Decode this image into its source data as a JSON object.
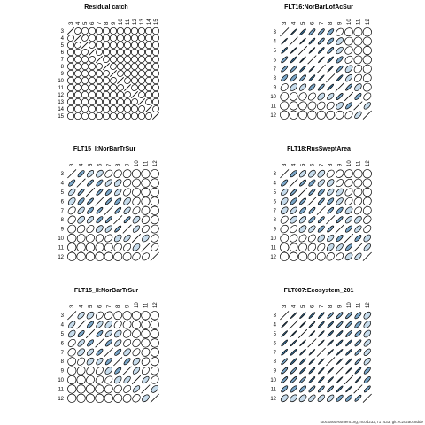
{
  "footer": "stockassessment.org, ncod232, r17433, git:ec2c2a0c8dde",
  "legend_colors": {
    "strong": "#3a6f96",
    "medium": "#7aa6c8",
    "light": "#c7dcec",
    "none": "#ffffff"
  },
  "chart_data": [
    {
      "type": "correlation-matrix",
      "title": "Residual catch",
      "ages": [
        3,
        4,
        5,
        6,
        7,
        8,
        9,
        10,
        11,
        12,
        13,
        14,
        15
      ],
      "rows": [
        [
          1,
          0.1,
          0,
          0,
          0,
          0,
          0,
          0,
          0,
          0,
          0,
          0,
          0
        ],
        [
          0.1,
          1,
          0.15,
          0,
          0,
          0,
          0,
          0,
          0,
          0,
          0,
          0,
          0
        ],
        [
          0,
          0.15,
          1,
          0.1,
          0,
          0,
          0,
          0,
          0,
          0,
          0,
          0,
          0
        ],
        [
          0,
          0,
          0.1,
          1,
          0.1,
          0,
          0,
          0,
          0,
          0,
          0,
          0,
          0
        ],
        [
          0,
          0,
          0,
          0.1,
          1,
          0.1,
          0,
          0,
          0,
          0,
          0,
          0,
          0
        ],
        [
          0,
          0,
          0,
          0,
          0.1,
          1,
          0.1,
          0,
          0,
          0,
          0,
          0,
          0
        ],
        [
          0,
          0,
          0,
          0,
          0,
          0.1,
          1,
          0.1,
          0,
          0,
          0,
          0,
          0
        ],
        [
          0,
          0,
          0,
          0,
          0,
          0,
          0.1,
          1,
          0.1,
          0,
          0,
          0,
          0
        ],
        [
          0,
          0,
          0,
          0,
          0,
          0,
          0,
          0.1,
          1,
          0.1,
          0,
          0,
          0
        ],
        [
          0,
          0,
          0,
          0,
          0,
          0,
          0,
          0,
          0.1,
          1,
          0.1,
          0,
          0
        ],
        [
          0,
          0,
          0,
          0,
          0,
          0,
          0,
          0,
          0,
          0.1,
          1,
          0.1,
          0
        ],
        [
          0,
          0,
          0,
          0,
          0,
          0,
          0,
          0,
          0,
          0,
          0.1,
          1,
          0.1
        ],
        [
          0,
          0,
          0,
          0,
          0,
          0,
          0,
          0,
          0,
          0,
          0,
          0.1,
          1
        ]
      ]
    },
    {
      "type": "correlation-matrix",
      "title": "FLT16:NorBarLofAcSur",
      "ages": [
        3,
        4,
        5,
        6,
        7,
        8,
        9,
        10,
        11,
        12
      ],
      "rows": [
        [
          1,
          0.9,
          0.8,
          0.7,
          0.7,
          0.6,
          0.3,
          0.1,
          0.05,
          0
        ],
        [
          0.9,
          1,
          0.9,
          0.8,
          0.7,
          0.6,
          0.4,
          0.1,
          0.05,
          0
        ],
        [
          0.8,
          0.9,
          1,
          0.9,
          0.8,
          0.7,
          0.5,
          0.2,
          0.1,
          0
        ],
        [
          0.7,
          0.8,
          0.9,
          1,
          0.9,
          0.8,
          0.6,
          0.3,
          0.1,
          0
        ],
        [
          0.7,
          0.7,
          0.8,
          0.9,
          1,
          0.9,
          0.7,
          0.4,
          0.2,
          0.05
        ],
        [
          0.6,
          0.6,
          0.7,
          0.8,
          0.9,
          1,
          0.8,
          0.5,
          0.3,
          0.1
        ],
        [
          0.3,
          0.4,
          0.5,
          0.6,
          0.7,
          0.8,
          1,
          0.7,
          0.4,
          0.1
        ],
        [
          0.1,
          0.1,
          0.2,
          0.3,
          0.4,
          0.5,
          0.7,
          1,
          0.6,
          0.3
        ],
        [
          0.05,
          0.05,
          0.1,
          0.1,
          0.2,
          0.3,
          0.4,
          0.6,
          1,
          0.5
        ],
        [
          0,
          0,
          0,
          0,
          0.05,
          0.1,
          0.1,
          0.3,
          0.5,
          1
        ]
      ]
    },
    {
      "type": "correlation-matrix",
      "title": "FLT15_I:NorBarTrSur_",
      "ages": [
        3,
        4,
        5,
        6,
        7,
        8,
        9,
        10,
        11,
        12
      ],
      "rows": [
        [
          1,
          0.6,
          0.5,
          0.4,
          0.3,
          0.2,
          0.1,
          0,
          0,
          0
        ],
        [
          0.6,
          1,
          0.7,
          0.6,
          0.5,
          0.4,
          0.2,
          0.1,
          0,
          0
        ],
        [
          0.5,
          0.7,
          1,
          0.7,
          0.6,
          0.5,
          0.3,
          0.1,
          0,
          0
        ],
        [
          0.4,
          0.6,
          0.7,
          1,
          0.7,
          0.6,
          0.4,
          0.2,
          0.05,
          0
        ],
        [
          0.3,
          0.5,
          0.6,
          0.7,
          1,
          0.7,
          0.5,
          0.3,
          0.1,
          0
        ],
        [
          0.2,
          0.4,
          0.5,
          0.6,
          0.7,
          1,
          0.7,
          0.4,
          0.2,
          0.05
        ],
        [
          0.1,
          0.2,
          0.3,
          0.4,
          0.5,
          0.7,
          1,
          0.5,
          0.3,
          0.1
        ],
        [
          0,
          0.1,
          0.1,
          0.2,
          0.3,
          0.4,
          0.5,
          1,
          0.4,
          0.2
        ],
        [
          0,
          0,
          0,
          0.05,
          0.1,
          0.2,
          0.3,
          0.4,
          1,
          0.3
        ],
        [
          0,
          0,
          0,
          0,
          0,
          0.05,
          0.1,
          0.2,
          0.3,
          1
        ]
      ]
    },
    {
      "type": "correlation-matrix",
      "title": "FLT18:RusSweptArea",
      "ages": [
        3,
        4,
        5,
        6,
        7,
        8,
        9,
        10,
        11,
        12
      ],
      "rows": [
        [
          1,
          0.6,
          0.5,
          0.4,
          0.4,
          0.3,
          0.2,
          0.1,
          0,
          0
        ],
        [
          0.6,
          1,
          0.7,
          0.6,
          0.5,
          0.4,
          0.3,
          0.2,
          0.1,
          0
        ],
        [
          0.5,
          0.7,
          1,
          0.7,
          0.6,
          0.5,
          0.4,
          0.3,
          0.1,
          0
        ],
        [
          0.4,
          0.6,
          0.7,
          1,
          0.7,
          0.6,
          0.5,
          0.3,
          0.2,
          0.1
        ],
        [
          0.4,
          0.5,
          0.6,
          0.7,
          1,
          0.7,
          0.6,
          0.4,
          0.3,
          0.1
        ],
        [
          0.3,
          0.4,
          0.5,
          0.6,
          0.7,
          1,
          0.7,
          0.5,
          0.4,
          0.2
        ],
        [
          0.2,
          0.3,
          0.4,
          0.5,
          0.6,
          0.7,
          1,
          0.6,
          0.5,
          0.3
        ],
        [
          0.1,
          0.2,
          0.3,
          0.3,
          0.4,
          0.5,
          0.6,
          1,
          0.6,
          0.4
        ],
        [
          0,
          0.1,
          0.1,
          0.2,
          0.3,
          0.4,
          0.5,
          0.6,
          1,
          0.5
        ],
        [
          0,
          0,
          0,
          0.1,
          0.1,
          0.2,
          0.3,
          0.4,
          0.5,
          1
        ]
      ]
    },
    {
      "type": "correlation-matrix",
      "title": "FLT15_II:NorBarTrSur",
      "ages": [
        3,
        4,
        5,
        6,
        7,
        8,
        9,
        10,
        11,
        12
      ],
      "rows": [
        [
          1,
          0.5,
          0.4,
          0.3,
          0.2,
          0.1,
          0,
          0,
          0,
          0
        ],
        [
          0.5,
          1,
          0.6,
          0.5,
          0.4,
          0.3,
          0.1,
          0,
          0,
          0
        ],
        [
          0.4,
          0.6,
          1,
          0.6,
          0.5,
          0.4,
          0.2,
          0.1,
          0,
          0
        ],
        [
          0.3,
          0.5,
          0.6,
          1,
          0.6,
          0.5,
          0.3,
          0.2,
          0,
          0
        ],
        [
          0.2,
          0.4,
          0.5,
          0.6,
          1,
          0.6,
          0.4,
          0.3,
          0.1,
          0
        ],
        [
          0.1,
          0.3,
          0.4,
          0.5,
          0.6,
          1,
          0.6,
          0.4,
          0.2,
          0.05
        ],
        [
          0,
          0.1,
          0.2,
          0.3,
          0.4,
          0.6,
          1,
          0.5,
          0.3,
          0.1
        ],
        [
          0,
          0,
          0.1,
          0.2,
          0.3,
          0.4,
          0.5,
          1,
          0.5,
          0.2
        ],
        [
          0,
          0,
          0,
          0,
          0.1,
          0.2,
          0.3,
          0.5,
          1,
          0.4
        ],
        [
          0,
          0,
          0,
          0,
          0,
          0.05,
          0.1,
          0.2,
          0.4,
          1
        ]
      ]
    },
    {
      "type": "correlation-matrix",
      "title": "FLT007:Ecosystem_201",
      "ages": [
        3,
        4,
        5,
        6,
        7,
        8,
        9,
        10,
        11,
        12
      ],
      "rows": [
        [
          1,
          0.9,
          0.85,
          0.8,
          0.8,
          0.75,
          0.7,
          0.7,
          0.6,
          0.4
        ],
        [
          0.9,
          1,
          0.9,
          0.85,
          0.8,
          0.8,
          0.75,
          0.7,
          0.6,
          0.4
        ],
        [
          0.85,
          0.9,
          1,
          0.9,
          0.85,
          0.8,
          0.8,
          0.75,
          0.6,
          0.4
        ],
        [
          0.8,
          0.85,
          0.9,
          1,
          0.9,
          0.85,
          0.8,
          0.8,
          0.7,
          0.5
        ],
        [
          0.8,
          0.8,
          0.85,
          0.9,
          1,
          0.9,
          0.85,
          0.8,
          0.7,
          0.5
        ],
        [
          0.75,
          0.8,
          0.8,
          0.85,
          0.9,
          1,
          0.9,
          0.85,
          0.75,
          0.5
        ],
        [
          0.7,
          0.75,
          0.8,
          0.8,
          0.85,
          0.9,
          1,
          0.9,
          0.8,
          0.6
        ],
        [
          0.7,
          0.7,
          0.75,
          0.8,
          0.8,
          0.85,
          0.9,
          1,
          0.85,
          0.6
        ],
        [
          0.6,
          0.6,
          0.6,
          0.7,
          0.7,
          0.75,
          0.8,
          0.85,
          1,
          0.7
        ],
        [
          0.4,
          0.4,
          0.4,
          0.5,
          0.5,
          0.5,
          0.6,
          0.6,
          0.7,
          1
        ]
      ]
    }
  ]
}
